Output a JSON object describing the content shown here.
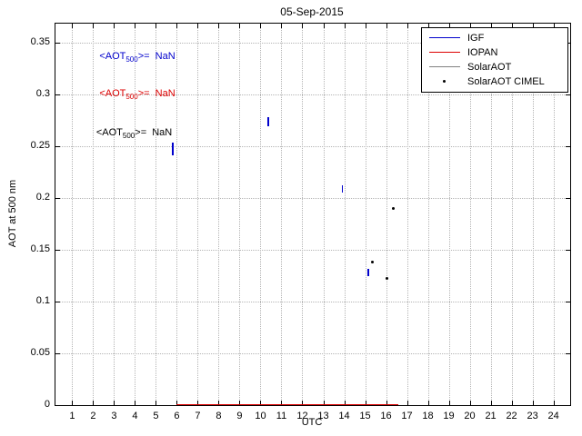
{
  "figure": {
    "background": "#ffffff"
  },
  "colors": {
    "igf_blue": "#0000cc",
    "iopan_red": "#dd0000",
    "solaraot_gray": "#808080",
    "cimel_black": "#000000",
    "grid_gray": "#b4b4b4",
    "axis_black": "#000000"
  },
  "chart_data": {
    "type": "scatter",
    "title": "05-Sep-2015",
    "xlabel": "UTC",
    "ylabel": "AOT at 500 nm",
    "xlim": [
      0.2,
      24.8
    ],
    "ylim": [
      0,
      0.368
    ],
    "xticks": [
      1,
      2,
      3,
      4,
      5,
      6,
      7,
      8,
      9,
      10,
      11,
      12,
      13,
      14,
      15,
      16,
      17,
      18,
      19,
      20,
      21,
      22,
      23,
      24
    ],
    "yticks": [
      0,
      0.05,
      0.1,
      0.15,
      0.2,
      0.25,
      0.3,
      0.35
    ],
    "grid": "dotted",
    "legend": {
      "position": "top-right",
      "entries": [
        {
          "label": "IGF",
          "color": "#0000cc",
          "marker": "line"
        },
        {
          "label": "IOPAN",
          "color": "#dd0000",
          "marker": "line"
        },
        {
          "label": "SolarAOT",
          "color": "#808080",
          "marker": "line"
        },
        {
          "label": "SolarAOT CIMEL",
          "color": "#000000",
          "marker": "dot"
        }
      ]
    },
    "series": [
      {
        "name": "IGF",
        "color": "#0000cc",
        "style": "vertical-segments",
        "segments": [
          {
            "x": 5.8,
            "y1": 0.241,
            "y2": 0.253
          },
          {
            "x": 10.35,
            "y1": 0.269,
            "y2": 0.278
          },
          {
            "x": 13.9,
            "y1": 0.205,
            "y2": 0.212
          },
          {
            "x": 15.15,
            "y1": 0.124,
            "y2": 0.131
          }
        ]
      },
      {
        "name": "IOPAN",
        "color": "#dd0000",
        "style": "baseline-segments",
        "segments": [
          {
            "y": 0,
            "x1": 6.0,
            "x2": 16.6
          }
        ]
      },
      {
        "name": "SolarAOT CIMEL",
        "color": "#000000",
        "style": "points",
        "points": [
          {
            "x": 15.35,
            "y": 0.138
          },
          {
            "x": 16.05,
            "y": 0.122
          },
          {
            "x": 16.35,
            "y": 0.19
          }
        ]
      }
    ],
    "annotations": [
      {
        "series": "IGF",
        "prefix": "<AOT",
        "sub": "500",
        "suffix": ">=  NaN",
        "x": 2.3,
        "y": 0.336,
        "color": "#0000cc"
      },
      {
        "series": "IOPAN",
        "prefix": "<AOT",
        "sub": "500",
        "suffix": ">=  NaN",
        "x": 2.3,
        "y": 0.3,
        "color": "#dd0000"
      },
      {
        "series": "SolarAOT",
        "prefix": "<AOT",
        "sub": "500",
        "suffix": ">=  NaN",
        "x": 2.15,
        "y": 0.262,
        "color": "#000000"
      }
    ]
  }
}
